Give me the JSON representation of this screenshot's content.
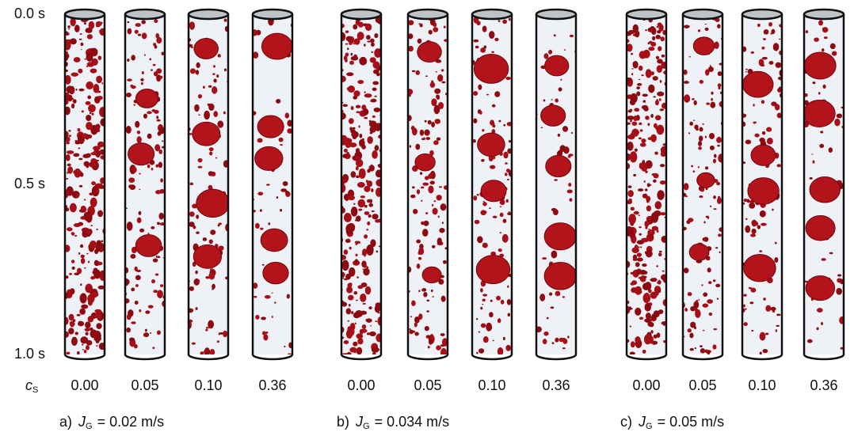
{
  "time_labels": [
    "0.0 s",
    "0.5 s",
    "1.0 s"
  ],
  "concentration_label": {
    "symbol": "c",
    "subscript": "S"
  },
  "groups": [
    {
      "prefix": "a)",
      "symbol": "J",
      "subscript": "G",
      "value": "= 0.02 m/s",
      "concentrations": [
        "0.00",
        "0.05",
        "0.10",
        "0.36"
      ]
    },
    {
      "prefix": "b)",
      "symbol": "J",
      "subscript": "G",
      "value": "= 0.034 m/s",
      "concentrations": [
        "0.00",
        "0.05",
        "0.10",
        "0.36"
      ]
    },
    {
      "prefix": "c)",
      "symbol": "J",
      "subscript": "G",
      "value": "= 0.05 m/s",
      "concentrations": [
        "0.00",
        "0.05",
        "0.10",
        "0.36"
      ]
    }
  ]
}
